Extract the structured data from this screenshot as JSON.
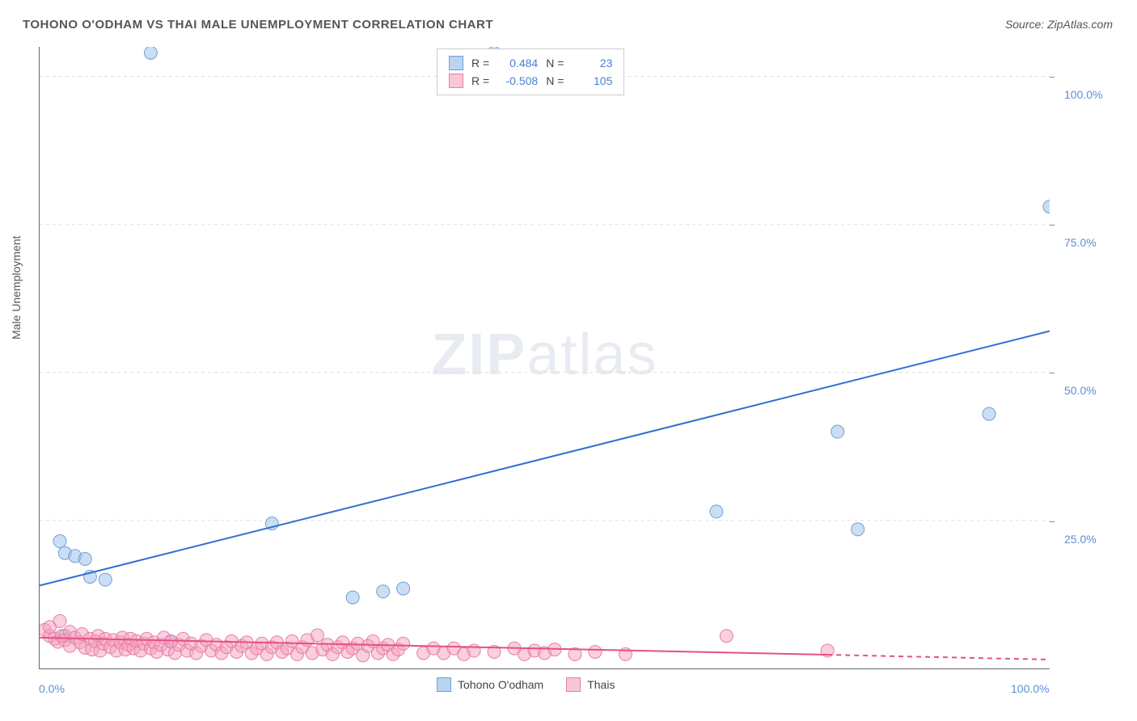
{
  "title": "TOHONO O'ODHAM VS THAI MALE UNEMPLOYMENT CORRELATION CHART",
  "source_label": "Source: ZipAtlas.com",
  "y_axis_title": "Male Unemployment",
  "watermark": {
    "zip": "ZIP",
    "atlas": "atlas"
  },
  "chart": {
    "type": "scatter",
    "xlim": [
      0,
      100
    ],
    "ylim": [
      0,
      105
    ],
    "x_ticks": [
      {
        "v": 0,
        "label": "0.0%"
      },
      {
        "v": 100,
        "label": "100.0%"
      }
    ],
    "y_ticks": [
      {
        "v": 25,
        "label": "25.0%"
      },
      {
        "v": 50,
        "label": "50.0%"
      },
      {
        "v": 75,
        "label": "75.0%"
      },
      {
        "v": 100,
        "label": "100.0%"
      }
    ],
    "grid_color": "#dddddd",
    "background_color": "#ffffff",
    "axis_color": "#666666",
    "series": [
      {
        "name": "Tohono O'odham",
        "color_fill": "rgba(160,195,235,0.55)",
        "color_stroke": "#6fa0d8",
        "marker_radius": 8,
        "trend_color": "#2f6fd0",
        "trend_width": 2,
        "trend": {
          "x1": 0,
          "y1": 14,
          "x2": 100,
          "y2": 57
        },
        "points": [
          [
            2,
            21.5
          ],
          [
            2.5,
            19.5
          ],
          [
            3.5,
            19
          ],
          [
            4.5,
            18.5
          ],
          [
            5,
            15.5
          ],
          [
            6.5,
            15
          ],
          [
            2.5,
            5.5
          ],
          [
            13,
            4.5
          ],
          [
            23,
            24.5
          ],
          [
            31,
            12
          ],
          [
            34,
            13
          ],
          [
            36,
            13.5
          ],
          [
            45,
            104
          ],
          [
            11,
            104
          ],
          [
            67,
            26.5
          ],
          [
            79,
            40
          ],
          [
            81,
            23.5
          ],
          [
            94,
            43
          ],
          [
            100,
            78
          ]
        ]
      },
      {
        "name": "Thais",
        "color_fill": "rgba(245,160,190,0.5)",
        "color_stroke": "#e67fa5",
        "marker_radius": 8,
        "trend_color": "#e64f86",
        "trend_width": 2,
        "trend": {
          "x1": 0,
          "y1": 5.2,
          "x2": 100,
          "y2": 1.5
        },
        "trend_dash_after_x": 78,
        "points": [
          [
            0.5,
            6.5
          ],
          [
            1,
            5.5
          ],
          [
            1,
            7
          ],
          [
            1.5,
            5
          ],
          [
            1.8,
            4.5
          ],
          [
            2,
            8
          ],
          [
            2.2,
            5.5
          ],
          [
            2.5,
            4.8
          ],
          [
            3,
            6.2
          ],
          [
            3,
            3.8
          ],
          [
            3.5,
            5.2
          ],
          [
            4,
            4.4
          ],
          [
            4.2,
            5.8
          ],
          [
            4.5,
            3.5
          ],
          [
            5,
            5.0
          ],
          [
            5.2,
            3.2
          ],
          [
            5.5,
            4.6
          ],
          [
            5.8,
            5.5
          ],
          [
            6,
            3.0
          ],
          [
            6.3,
            4.2
          ],
          [
            6.5,
            5.0
          ],
          [
            7,
            3.6
          ],
          [
            7.3,
            4.8
          ],
          [
            7.6,
            3.0
          ],
          [
            8,
            4.4
          ],
          [
            8.2,
            5.2
          ],
          [
            8.5,
            3.2
          ],
          [
            8.8,
            4.0
          ],
          [
            9,
            5.0
          ],
          [
            9.3,
            3.4
          ],
          [
            9.6,
            4.6
          ],
          [
            10,
            3.0
          ],
          [
            10.3,
            4.2
          ],
          [
            10.6,
            5.0
          ],
          [
            11,
            3.4
          ],
          [
            11.3,
            4.4
          ],
          [
            11.6,
            2.8
          ],
          [
            12,
            4.0
          ],
          [
            12.3,
            5.2
          ],
          [
            12.7,
            3.2
          ],
          [
            13,
            4.6
          ],
          [
            13.4,
            2.6
          ],
          [
            13.8,
            4.0
          ],
          [
            14.2,
            5.0
          ],
          [
            14.6,
            3.0
          ],
          [
            15,
            4.2
          ],
          [
            15.5,
            2.6
          ],
          [
            16,
            3.8
          ],
          [
            16.5,
            4.8
          ],
          [
            17,
            3.0
          ],
          [
            17.5,
            4.0
          ],
          [
            18,
            2.6
          ],
          [
            18.5,
            3.6
          ],
          [
            19,
            4.6
          ],
          [
            19.5,
            2.8
          ],
          [
            20,
            3.8
          ],
          [
            20.5,
            4.4
          ],
          [
            21,
            2.6
          ],
          [
            21.5,
            3.4
          ],
          [
            22,
            4.2
          ],
          [
            22.5,
            2.4
          ],
          [
            23,
            3.6
          ],
          [
            23.5,
            4.4
          ],
          [
            24,
            2.8
          ],
          [
            24.5,
            3.4
          ],
          [
            25,
            4.6
          ],
          [
            25.5,
            2.4
          ],
          [
            26,
            3.6
          ],
          [
            26.5,
            4.8
          ],
          [
            27,
            2.6
          ],
          [
            27.5,
            5.6
          ],
          [
            28,
            3.2
          ],
          [
            28.5,
            4.0
          ],
          [
            29,
            2.4
          ],
          [
            29.5,
            3.6
          ],
          [
            30,
            4.4
          ],
          [
            30.5,
            2.8
          ],
          [
            31,
            3.4
          ],
          [
            31.5,
            4.2
          ],
          [
            32,
            2.2
          ],
          [
            32.5,
            3.8
          ],
          [
            33,
            4.6
          ],
          [
            33.5,
            2.6
          ],
          [
            34,
            3.4
          ],
          [
            34.5,
            4.0
          ],
          [
            35,
            2.4
          ],
          [
            35.5,
            3.2
          ],
          [
            36,
            4.2
          ],
          [
            38,
            2.6
          ],
          [
            39,
            3.4
          ],
          [
            40,
            2.6
          ],
          [
            41,
            3.4
          ],
          [
            42,
            2.4
          ],
          [
            43,
            3.0
          ],
          [
            45,
            2.8
          ],
          [
            47,
            3.4
          ],
          [
            48,
            2.4
          ],
          [
            49,
            3.0
          ],
          [
            50,
            2.6
          ],
          [
            51,
            3.2
          ],
          [
            53,
            2.4
          ],
          [
            55,
            2.8
          ],
          [
            58,
            2.4
          ],
          [
            68,
            5.5
          ],
          [
            78,
            3.0
          ]
        ]
      }
    ],
    "stats_box": {
      "rows": [
        {
          "swatch_fill": "#b9d4f0",
          "swatch_border": "#6fa0d8",
          "r_label": "R =",
          "r": "0.484",
          "n_label": "N =",
          "n": "23"
        },
        {
          "swatch_fill": "#f7c6d7",
          "swatch_border": "#e67fa5",
          "r_label": "R =",
          "r": "-0.508",
          "n_label": "N =",
          "n": "105"
        }
      ]
    },
    "bottom_legend": [
      {
        "swatch_fill": "#b9d4f0",
        "swatch_border": "#6fa0d8",
        "label": "Tohono O'odham"
      },
      {
        "swatch_fill": "#f7c6d7",
        "swatch_border": "#e67fa5",
        "label": "Thais"
      }
    ]
  }
}
